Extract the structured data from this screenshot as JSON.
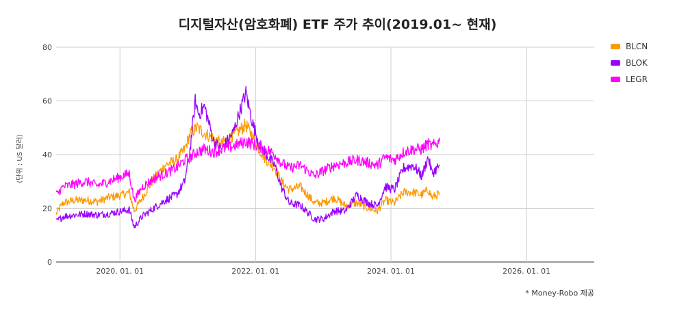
{
  "chart_data": {
    "type": "line",
    "title": "디지털자산(암호화폐) ETF 주가 추이(2019.01~ 현재)",
    "ylabel": "(단위 : US 달러)",
    "xlabel": "",
    "ylim": [
      0,
      80
    ],
    "yticks": [
      "0",
      "20",
      "40",
      "60",
      "80"
    ],
    "xlim": [
      "2019-01-22",
      "2027-01-01"
    ],
    "xticks": [
      {
        "date": "2020-01-01",
        "label": "2020. 01. 01"
      },
      {
        "date": "2022-01-01",
        "label": "2022. 01. 01"
      },
      {
        "date": "2024-01-01",
        "label": "2024. 01. 01"
      },
      {
        "date": "2026-01-01",
        "label": "2026. 01. 01"
      }
    ],
    "grid": true,
    "legend_position": "top-right",
    "note": "* Money-Robo 제공",
    "series": [
      {
        "name": "BLCN",
        "color": "#ff9900",
        "points": [
          [
            "2019-01-22",
            18
          ],
          [
            "2019-03-01",
            22
          ],
          [
            "2019-05-01",
            23
          ],
          [
            "2019-07-01",
            23
          ],
          [
            "2019-09-01",
            22.5
          ],
          [
            "2019-11-01",
            24
          ],
          [
            "2020-01-15",
            25
          ],
          [
            "2020-02-20",
            26
          ],
          [
            "2020-03-18",
            19
          ],
          [
            "2020-05-01",
            24
          ],
          [
            "2020-07-01",
            31
          ],
          [
            "2020-09-01",
            36
          ],
          [
            "2020-11-01",
            38
          ],
          [
            "2020-12-15",
            42
          ],
          [
            "2021-01-15",
            48
          ],
          [
            "2021-02-20",
            50
          ],
          [
            "2021-04-01",
            48
          ],
          [
            "2021-05-20",
            46
          ],
          [
            "2021-07-01",
            44
          ],
          [
            "2021-09-01",
            47
          ],
          [
            "2021-11-10",
            51
          ],
          [
            "2021-12-15",
            47
          ],
          [
            "2022-01-20",
            42
          ],
          [
            "2022-03-01",
            38
          ],
          [
            "2022-04-15",
            35
          ],
          [
            "2022-05-20",
            30
          ],
          [
            "2022-07-01",
            27
          ],
          [
            "2022-09-01",
            28
          ],
          [
            "2022-11-15",
            22
          ],
          [
            "2023-01-01",
            22
          ],
          [
            "2023-03-01",
            24
          ],
          [
            "2023-05-01",
            21
          ],
          [
            "2023-07-01",
            22
          ],
          [
            "2023-09-01",
            20
          ],
          [
            "2023-10-20",
            19
          ],
          [
            "2023-12-01",
            23
          ],
          [
            "2024-01-20",
            22
          ],
          [
            "2024-03-10",
            26
          ],
          [
            "2024-05-01",
            26
          ],
          [
            "2024-06-15",
            25
          ],
          [
            "2024-07-20",
            27
          ],
          [
            "2024-08-10",
            24
          ],
          [
            "2024-09-20",
            25.5
          ]
        ]
      },
      {
        "name": "BLOK",
        "color": "#9900ff",
        "points": [
          [
            "2019-01-22",
            15
          ],
          [
            "2019-03-01",
            17
          ],
          [
            "2019-05-01",
            17.5
          ],
          [
            "2019-07-01",
            18
          ],
          [
            "2019-09-01",
            17.5
          ],
          [
            "2019-11-01",
            18
          ],
          [
            "2020-01-15",
            19
          ],
          [
            "2020-02-20",
            19.5
          ],
          [
            "2020-03-18",
            13
          ],
          [
            "2020-05-01",
            17
          ],
          [
            "2020-07-01",
            20
          ],
          [
            "2020-09-01",
            23
          ],
          [
            "2020-11-01",
            25
          ],
          [
            "2020-12-15",
            30
          ],
          [
            "2021-01-10",
            40
          ],
          [
            "2021-02-10",
            60
          ],
          [
            "2021-03-01",
            55
          ],
          [
            "2021-04-01",
            58
          ],
          [
            "2021-05-20",
            45
          ],
          [
            "2021-07-01",
            42
          ],
          [
            "2021-09-01",
            48
          ],
          [
            "2021-11-10",
            63
          ],
          [
            "2021-12-15",
            52
          ],
          [
            "2022-01-20",
            44
          ],
          [
            "2022-03-01",
            40
          ],
          [
            "2022-04-15",
            36
          ],
          [
            "2022-05-20",
            28
          ],
          [
            "2022-07-01",
            22
          ],
          [
            "2022-09-01",
            21
          ],
          [
            "2022-11-15",
            16
          ],
          [
            "2023-01-01",
            16
          ],
          [
            "2023-03-01",
            19
          ],
          [
            "2023-05-01",
            19
          ],
          [
            "2023-07-01",
            25
          ],
          [
            "2023-09-01",
            22
          ],
          [
            "2023-10-20",
            21
          ],
          [
            "2023-12-01",
            28
          ],
          [
            "2024-01-20",
            27
          ],
          [
            "2024-03-10",
            35
          ],
          [
            "2024-05-01",
            36
          ],
          [
            "2024-06-15",
            32
          ],
          [
            "2024-07-20",
            39
          ],
          [
            "2024-08-10",
            33
          ],
          [
            "2024-09-20",
            36
          ]
        ]
      },
      {
        "name": "LEGR",
        "color": "#ff00ff",
        "points": [
          [
            "2019-01-22",
            25
          ],
          [
            "2019-03-01",
            28
          ],
          [
            "2019-05-01",
            29
          ],
          [
            "2019-07-01",
            30
          ],
          [
            "2019-09-01",
            28.5
          ],
          [
            "2019-11-01",
            30
          ],
          [
            "2020-01-15",
            32
          ],
          [
            "2020-02-20",
            33
          ],
          [
            "2020-03-18",
            23
          ],
          [
            "2020-05-01",
            28
          ],
          [
            "2020-07-01",
            31
          ],
          [
            "2020-09-01",
            33
          ],
          [
            "2020-11-01",
            35
          ],
          [
            "2020-12-15",
            38
          ],
          [
            "2021-01-15",
            39
          ],
          [
            "2021-02-20",
            41
          ],
          [
            "2021-04-01",
            42
          ],
          [
            "2021-05-20",
            41
          ],
          [
            "2021-07-01",
            42
          ],
          [
            "2021-09-01",
            43
          ],
          [
            "2021-11-10",
            45
          ],
          [
            "2021-12-15",
            44
          ],
          [
            "2022-01-20",
            43
          ],
          [
            "2022-03-01",
            42
          ],
          [
            "2022-04-15",
            40
          ],
          [
            "2022-05-20",
            37
          ],
          [
            "2022-07-01",
            35
          ],
          [
            "2022-09-01",
            36
          ],
          [
            "2022-11-15",
            32
          ],
          [
            "2023-01-01",
            34
          ],
          [
            "2023-03-01",
            36
          ],
          [
            "2023-05-01",
            37
          ],
          [
            "2023-07-01",
            38
          ],
          [
            "2023-09-01",
            37
          ],
          [
            "2023-10-20",
            36
          ],
          [
            "2023-12-01",
            39
          ],
          [
            "2024-01-20",
            38
          ],
          [
            "2024-03-10",
            41
          ],
          [
            "2024-05-01",
            42
          ],
          [
            "2024-06-15",
            42
          ],
          [
            "2024-07-20",
            44
          ],
          [
            "2024-08-10",
            43
          ],
          [
            "2024-09-20",
            45
          ]
        ]
      }
    ]
  }
}
